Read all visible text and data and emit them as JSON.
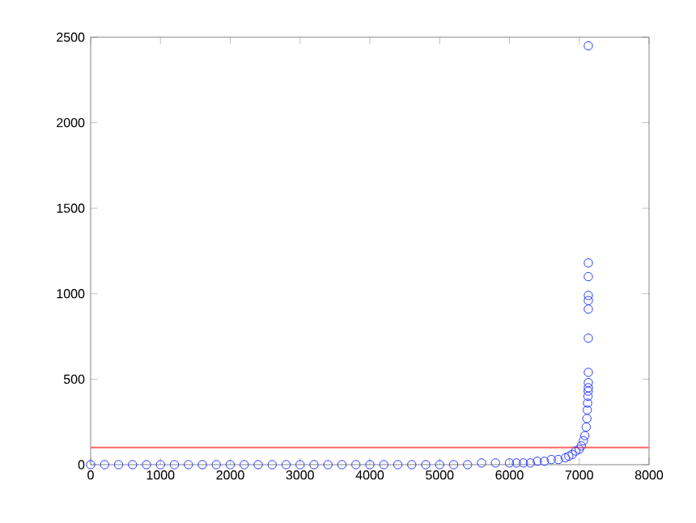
{
  "chart_data": {
    "type": "scatter",
    "marker": "circle",
    "grid": false,
    "xlim": [
      0,
      8000
    ],
    "ylim": [
      0,
      2500
    ],
    "xticks": [
      0,
      1000,
      2000,
      3000,
      4000,
      5000,
      6000,
      7000,
      8000
    ],
    "yticks": [
      0,
      500,
      1000,
      1500,
      2000,
      2500
    ],
    "ref_lines": [
      {
        "axis": "y",
        "value": 100,
        "color": "#ff6666"
      }
    ],
    "series": [
      {
        "color": "#2a3cff",
        "x": [
          0,
          200,
          400,
          600,
          800,
          1000,
          1200,
          1400,
          1600,
          1800,
          2000,
          2200,
          2400,
          2600,
          2800,
          3000,
          3200,
          3400,
          3600,
          3800,
          4000,
          4200,
          4400,
          4600,
          4800,
          5000,
          5200,
          5400,
          5600,
          5800,
          6000,
          6100,
          6200,
          6300,
          6400,
          6500,
          6600,
          6700,
          6800,
          6850,
          6900,
          6950,
          7000,
          7030,
          7060,
          7080,
          7100,
          7110,
          7115,
          7120,
          7125,
          7128,
          7130,
          7130,
          7130,
          7130,
          7130,
          7130,
          7130,
          7130,
          7130,
          7130
        ],
        "values": [
          0,
          0,
          0,
          0,
          0,
          0,
          0,
          0,
          0,
          0,
          0,
          0,
          0,
          0,
          0,
          0,
          0,
          0,
          0,
          0,
          0,
          0,
          0,
          0,
          0,
          0,
          0,
          0,
          10,
          10,
          10,
          10,
          10,
          10,
          20,
          20,
          30,
          30,
          40,
          50,
          60,
          80,
          90,
          110,
          140,
          170,
          220,
          270,
          320,
          360,
          400,
          430,
          450,
          480,
          540,
          740,
          910,
          960,
          990,
          1100,
          1180,
          2450
        ]
      }
    ]
  }
}
